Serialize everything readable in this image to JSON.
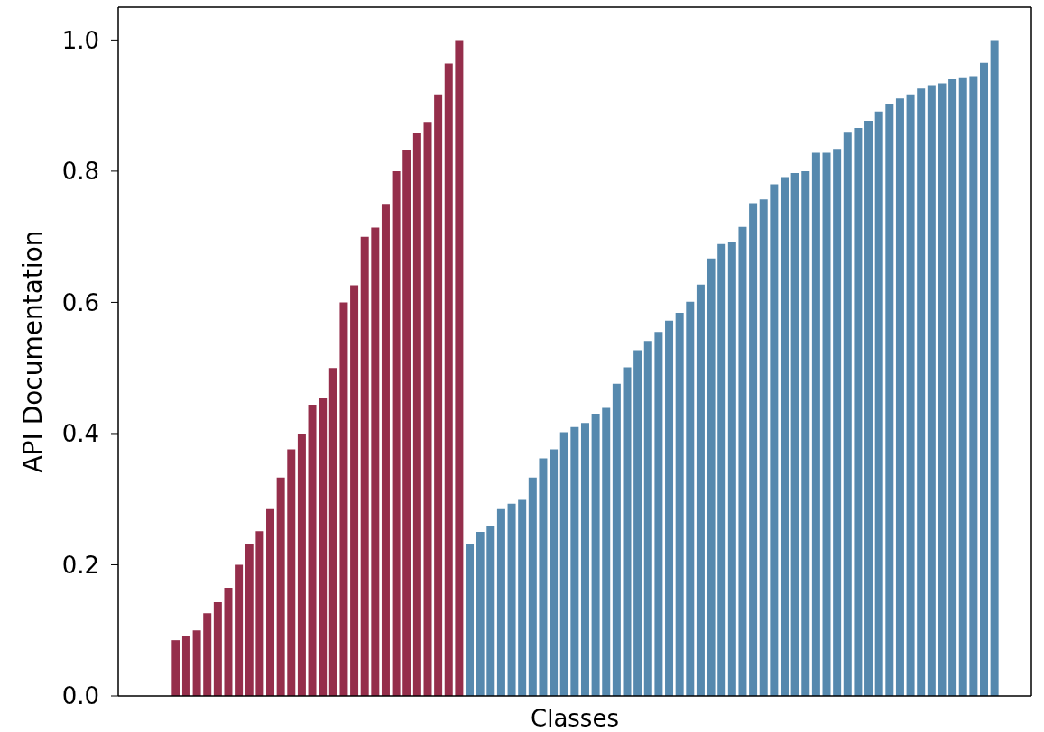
{
  "chart_data": {
    "type": "bar",
    "xlabel": "Classes",
    "ylabel": "API Documentation",
    "categories": [
      null,
      null,
      null,
      null,
      null,
      null,
      null,
      null,
      null,
      null,
      null,
      null,
      null,
      null,
      null,
      null,
      null,
      null,
      null,
      null,
      null,
      null,
      null,
      null,
      null,
      null,
      null,
      null,
      null,
      null,
      null,
      null,
      null,
      null,
      null,
      null,
      null,
      null,
      null,
      null,
      null,
      null,
      null,
      null,
      null,
      null,
      null,
      null,
      null,
      null,
      null,
      null,
      null,
      null,
      null,
      null,
      null,
      null,
      null,
      null,
      null,
      null,
      null,
      null,
      null,
      null,
      null,
      null,
      null,
      null,
      null,
      null,
      null,
      null,
      null,
      null,
      null,
      null,
      null,
      null,
      null,
      null,
      null,
      null,
      null,
      null,
      null
    ],
    "series": [
      {
        "color": "#952e4b",
        "values": [
          null,
          null,
          null,
          null,
          null,
          0.085,
          0.091,
          0.1,
          0.126,
          0.143,
          0.165,
          0.2,
          0.231,
          0.251,
          0.285,
          0.333,
          0.376,
          0.4,
          0.444,
          0.455,
          0.5,
          0.6,
          0.626,
          0.7,
          0.714,
          0.75,
          0.8,
          0.833,
          0.858,
          0.875,
          0.917,
          0.964,
          1,
          null,
          null,
          null,
          null,
          null,
          null,
          null,
          null,
          null,
          null,
          null,
          null,
          null,
          null,
          null,
          null,
          null,
          null,
          null,
          null,
          null,
          null,
          null,
          null,
          null,
          null,
          null,
          null,
          null,
          null,
          null,
          null,
          null,
          null,
          null,
          null,
          null,
          null,
          null,
          null,
          null,
          null,
          null,
          null,
          null,
          null,
          null,
          null,
          null,
          null,
          null,
          null,
          null,
          null
        ]
      },
      {
        "color": "#5689ae",
        "values": [
          null,
          null,
          null,
          null,
          null,
          null,
          null,
          null,
          null,
          null,
          null,
          null,
          null,
          null,
          null,
          null,
          null,
          null,
          null,
          null,
          null,
          null,
          null,
          null,
          null,
          null,
          null,
          null,
          null,
          null,
          null,
          null,
          null,
          0.231,
          0.25,
          0.259,
          0.285,
          0.293,
          0.299,
          0.333,
          0.362,
          0.376,
          0.402,
          0.41,
          0.416,
          0.43,
          0.439,
          0.476,
          0.501,
          0.527,
          0.541,
          0.555,
          0.572,
          0.584,
          0.601,
          0.627,
          0.667,
          0.689,
          0.692,
          0.715,
          0.751,
          0.757,
          0.78,
          0.791,
          0.797,
          0.8,
          0.828,
          0.828,
          0.834,
          0.86,
          0.866,
          0.877,
          0.891,
          0.903,
          0.911,
          0.917,
          0.926,
          0.931,
          0.934,
          0.94,
          0.943,
          0.945,
          0.965,
          1,
          null,
          null,
          null
        ]
      }
    ],
    "ylim": [
      0,
      1.05
    ],
    "yticks": [
      {
        "value": 0,
        "label": "0.0"
      },
      0.2,
      0.4,
      0.6,
      0.8,
      {
        "value": 1,
        "label": "1.0"
      }
    ],
    "tick_labels": "y"
  }
}
